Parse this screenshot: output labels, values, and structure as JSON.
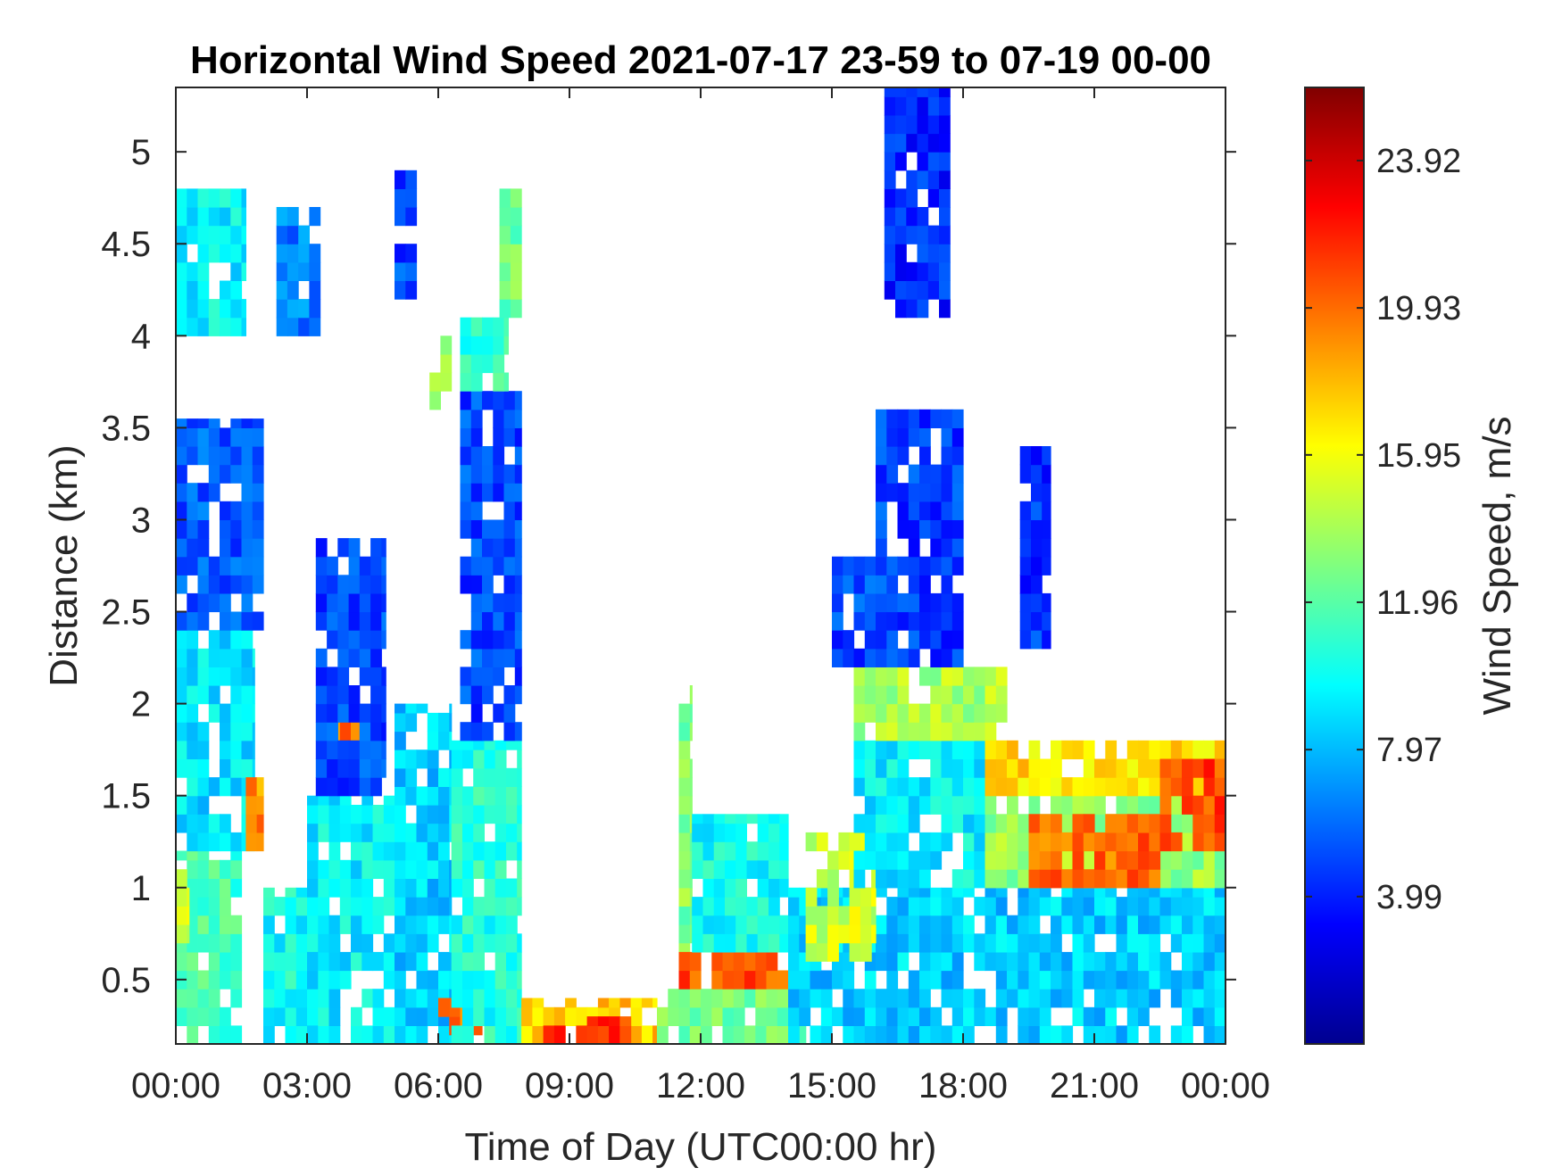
{
  "chart_data": {
    "type": "heatmap",
    "title": "Horizontal Wind Speed 2021-07-17 23-59 to 07-19 00-00",
    "xlabel": "Time of Day (UTC00:00 hr)",
    "ylabel": "Distance (km)",
    "xlim": [
      0,
      24
    ],
    "ylim": [
      0.15,
      5.35
    ],
    "x_tick_values": [
      0,
      3,
      6,
      9,
      12,
      15,
      18,
      21,
      24
    ],
    "x_ticks": [
      "00:00",
      "03:00",
      "06:00",
      "09:00",
      "12:00",
      "15:00",
      "18:00",
      "21:00",
      "00:00"
    ],
    "y_ticks": [
      0.5,
      1,
      1.5,
      2,
      2.5,
      3,
      3.5,
      4,
      4.5,
      5
    ],
    "y_tick_labels": [
      "0.5",
      "1",
      "1.5",
      "2",
      "2.5",
      "3",
      "3.5",
      "4",
      "4.5",
      "5"
    ],
    "colorbar": {
      "label": "Wind Speed, m/s",
      "colormap": "jet",
      "range": [
        0,
        25.9
      ],
      "ticks": [
        3.99,
        7.97,
        11.96,
        15.95,
        19.93,
        23.92
      ],
      "tick_labels": [
        "3.99",
        "7.97",
        "11.96",
        "15.95",
        "19.93",
        "23.92"
      ]
    },
    "grid": false,
    "bins": {
      "x_hours_step": 0.25,
      "y_km_step": 0.1,
      "x_start": 0,
      "y_start": 0.15
    },
    "regions": [
      {
        "t0": 0.0,
        "t1": 1.5,
        "h0": 0.15,
        "h1": 1.2,
        "speed": 11.5
      },
      {
        "t0": 0.0,
        "t1": 0.3,
        "h0": 0.7,
        "h1": 1.1,
        "speed": 15.5
      },
      {
        "t0": 0.0,
        "t1": 1.8,
        "h0": 1.2,
        "h1": 2.4,
        "speed": 9.0
      },
      {
        "t0": 0.0,
        "t1": 2.0,
        "h0": 2.4,
        "h1": 3.55,
        "speed": 5.5
      },
      {
        "t0": 0.0,
        "t1": 1.6,
        "h0": 4.0,
        "h1": 4.8,
        "speed": 9.5
      },
      {
        "t0": 1.6,
        "t1": 2.0,
        "h0": 1.2,
        "h1": 1.6,
        "speed": 19.0
      },
      {
        "t0": 2.0,
        "t1": 3.5,
        "h0": 0.15,
        "h1": 1.0,
        "speed": 10.0
      },
      {
        "t0": 2.3,
        "t1": 3.3,
        "h0": 4.0,
        "h1": 4.7,
        "speed": 6.5
      },
      {
        "t0": 3.5,
        "t1": 4.2,
        "h0": 1.5,
        "h1": 1.9,
        "speed": 19.5
      },
      {
        "t0": 3.0,
        "t1": 5.0,
        "h0": 0.15,
        "h1": 1.5,
        "speed": 9.5
      },
      {
        "t0": 3.2,
        "t1": 4.8,
        "h0": 1.5,
        "h1": 2.9,
        "speed": 5.0
      },
      {
        "t0": 5.0,
        "t1": 6.3,
        "h0": 0.15,
        "h1": 2.0,
        "speed": 8.5
      },
      {
        "t0": 5.0,
        "t1": 5.5,
        "h0": 4.2,
        "h1": 4.9,
        "speed": 5.0
      },
      {
        "t0": 5.8,
        "t1": 6.3,
        "h0": 3.6,
        "h1": 4.0,
        "speed": 14.0
      },
      {
        "t0": 6.0,
        "t1": 7.0,
        "h0": 0.2,
        "h1": 0.4,
        "speed": 19.5
      },
      {
        "t0": 6.3,
        "t1": 7.9,
        "h0": 0.15,
        "h1": 1.8,
        "speed": 10.5
      },
      {
        "t0": 6.5,
        "t1": 7.9,
        "h0": 1.8,
        "h1": 3.7,
        "speed": 5.0
      },
      {
        "t0": 6.5,
        "t1": 7.6,
        "h0": 3.7,
        "h1": 4.1,
        "speed": 11.0
      },
      {
        "t0": 7.4,
        "t1": 7.9,
        "h0": 4.1,
        "h1": 4.8,
        "speed": 12.5
      },
      {
        "t0": 7.9,
        "t1": 11.0,
        "h0": 0.15,
        "h1": 0.4,
        "speed": 17.5
      },
      {
        "t0": 8.4,
        "t1": 10.4,
        "h0": 0.15,
        "h1": 0.3,
        "speed": 21.5
      },
      {
        "t0": 11.0,
        "t1": 14.4,
        "h0": 0.15,
        "h1": 0.45,
        "speed": 12.5
      },
      {
        "t0": 11.5,
        "t1": 11.8,
        "h0": 0.5,
        "h1": 2.1,
        "speed": 13.0
      },
      {
        "t0": 11.5,
        "t1": 14.2,
        "h0": 0.45,
        "h1": 0.65,
        "speed": 20.5
      },
      {
        "t0": 11.8,
        "t1": 14.0,
        "h0": 0.65,
        "h1": 1.4,
        "speed": 10.0
      },
      {
        "t0": 14.0,
        "t1": 24.0,
        "h0": 0.15,
        "h1": 1.0,
        "speed": 8.5
      },
      {
        "t0": 14.4,
        "t1": 16.0,
        "h0": 0.6,
        "h1": 1.3,
        "speed": 15.0
      },
      {
        "t0": 15.5,
        "t1": 18.5,
        "h0": 1.0,
        "h1": 1.8,
        "speed": 9.5
      },
      {
        "t0": 15.5,
        "t1": 19.0,
        "h0": 1.8,
        "h1": 2.2,
        "speed": 14.0
      },
      {
        "t0": 18.5,
        "t1": 24.0,
        "h0": 1.0,
        "h1": 1.5,
        "speed": 13.5
      },
      {
        "t0": 18.5,
        "t1": 24.0,
        "h0": 1.5,
        "h1": 1.8,
        "speed": 17.0
      },
      {
        "t0": 19.5,
        "t1": 22.5,
        "h0": 1.0,
        "h1": 1.4,
        "speed": 20.0
      },
      {
        "t0": 22.5,
        "t1": 24.0,
        "h0": 1.2,
        "h1": 1.7,
        "speed": 21.0
      },
      {
        "t0": 15.0,
        "t1": 16.0,
        "h0": 2.2,
        "h1": 2.8,
        "speed": 5.0
      },
      {
        "t0": 16.0,
        "t1": 18.0,
        "h0": 2.2,
        "h1": 3.6,
        "speed": 4.8
      },
      {
        "t0": 16.2,
        "t1": 17.7,
        "h0": 4.1,
        "h1": 5.35,
        "speed": 4.2
      },
      {
        "t0": 19.3,
        "t1": 20.0,
        "h0": 2.3,
        "h1": 3.4,
        "speed": 4.5
      }
    ]
  }
}
